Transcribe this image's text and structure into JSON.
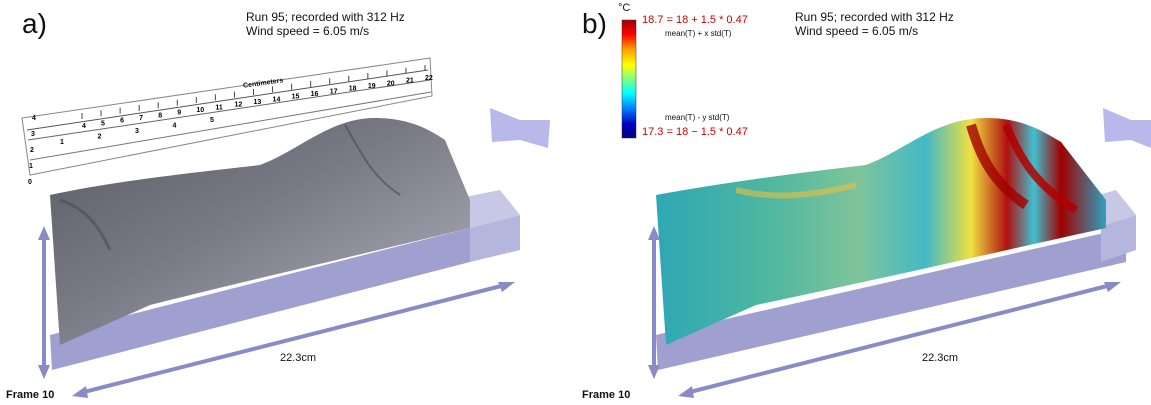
{
  "panels": [
    {
      "label": "a)",
      "info_line1": "Run  95; recorded with 312 Hz",
      "info_line2": "Wind speed = 6.05 m/s",
      "ruler_label": "Centimeters",
      "ruler_ticks_top": [
        "4",
        "5",
        "6",
        "7",
        "8",
        "9",
        "10",
        "11",
        "12",
        "13",
        "14",
        "15",
        "16",
        "17",
        "18",
        "19",
        "20",
        "21",
        "22"
      ],
      "ruler_ticks_bottom": [
        "1",
        "2",
        "3",
        "4",
        "5"
      ],
      "ruler_side": [
        "4",
        "3",
        "2",
        "1",
        "0"
      ],
      "length_label": "22.3cm",
      "frame_label": "Frame 10",
      "surface": "grayscale"
    },
    {
      "label": "b)",
      "info_line1": "Run  95; recorded with 312 Hz",
      "info_line2": "Wind speed = 6.05 m/s",
      "length_label": "22.3cm",
      "frame_label": "Frame 10",
      "surface": "temperature"
    }
  ],
  "colorbar": {
    "unit": "°C",
    "max_text": "18.7 = 18 + 1.5 * 0.47",
    "max_formula": "mean(T) + x std(T)",
    "min_formula": "mean(T) - y std(T)",
    "min_text": "17.3 = 18 − 1.5 * 0.47",
    "colors": [
      "#a00000",
      "#ff0000",
      "#ffa000",
      "#ffff00",
      "#80ff80",
      "#00ffff",
      "#0080ff",
      "#0000c0",
      "#000080"
    ]
  },
  "accent": "#8c8ccc"
}
